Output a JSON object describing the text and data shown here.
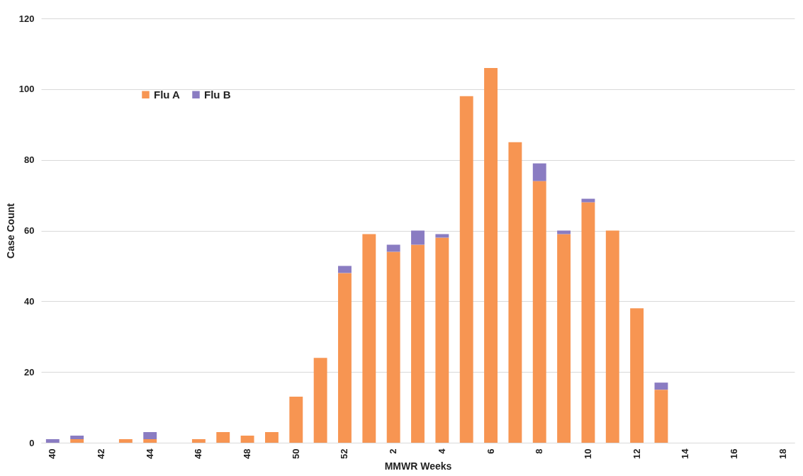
{
  "chart_data": {
    "type": "bar",
    "stacked": true,
    "xlabel": "MMWR Weeks",
    "ylabel": "Case Count",
    "categories": [
      "40",
      null,
      "42",
      null,
      "44",
      null,
      "46",
      null,
      "48",
      null,
      "50",
      null,
      "52",
      null,
      "2",
      null,
      "4",
      null,
      "6",
      null,
      "8",
      null,
      "10",
      null,
      "12",
      null,
      "14",
      null,
      "16",
      null,
      "18"
    ],
    "series": [
      {
        "name": "Flu A",
        "color": "#f79552",
        "values": [
          0,
          1,
          0,
          1,
          1,
          0,
          1,
          3,
          2,
          3,
          13,
          24,
          48,
          59,
          54,
          56,
          58,
          98,
          106,
          85,
          74,
          59,
          68,
          60,
          38,
          15,
          0,
          0,
          0,
          0,
          0
        ]
      },
      {
        "name": "Flu B",
        "color": "#8a7cc2",
        "values": [
          1,
          1,
          0,
          0,
          2,
          0,
          0,
          0,
          0,
          0,
          0,
          0,
          2,
          0,
          2,
          4,
          1,
          0,
          0,
          0,
          5,
          1,
          1,
          0,
          0,
          2,
          0,
          0,
          0,
          0,
          0
        ]
      }
    ],
    "ylim": [
      0,
      120
    ],
    "yticks": [
      0,
      20,
      40,
      60,
      80,
      100,
      120
    ],
    "grid": "y",
    "legend": "top left"
  }
}
